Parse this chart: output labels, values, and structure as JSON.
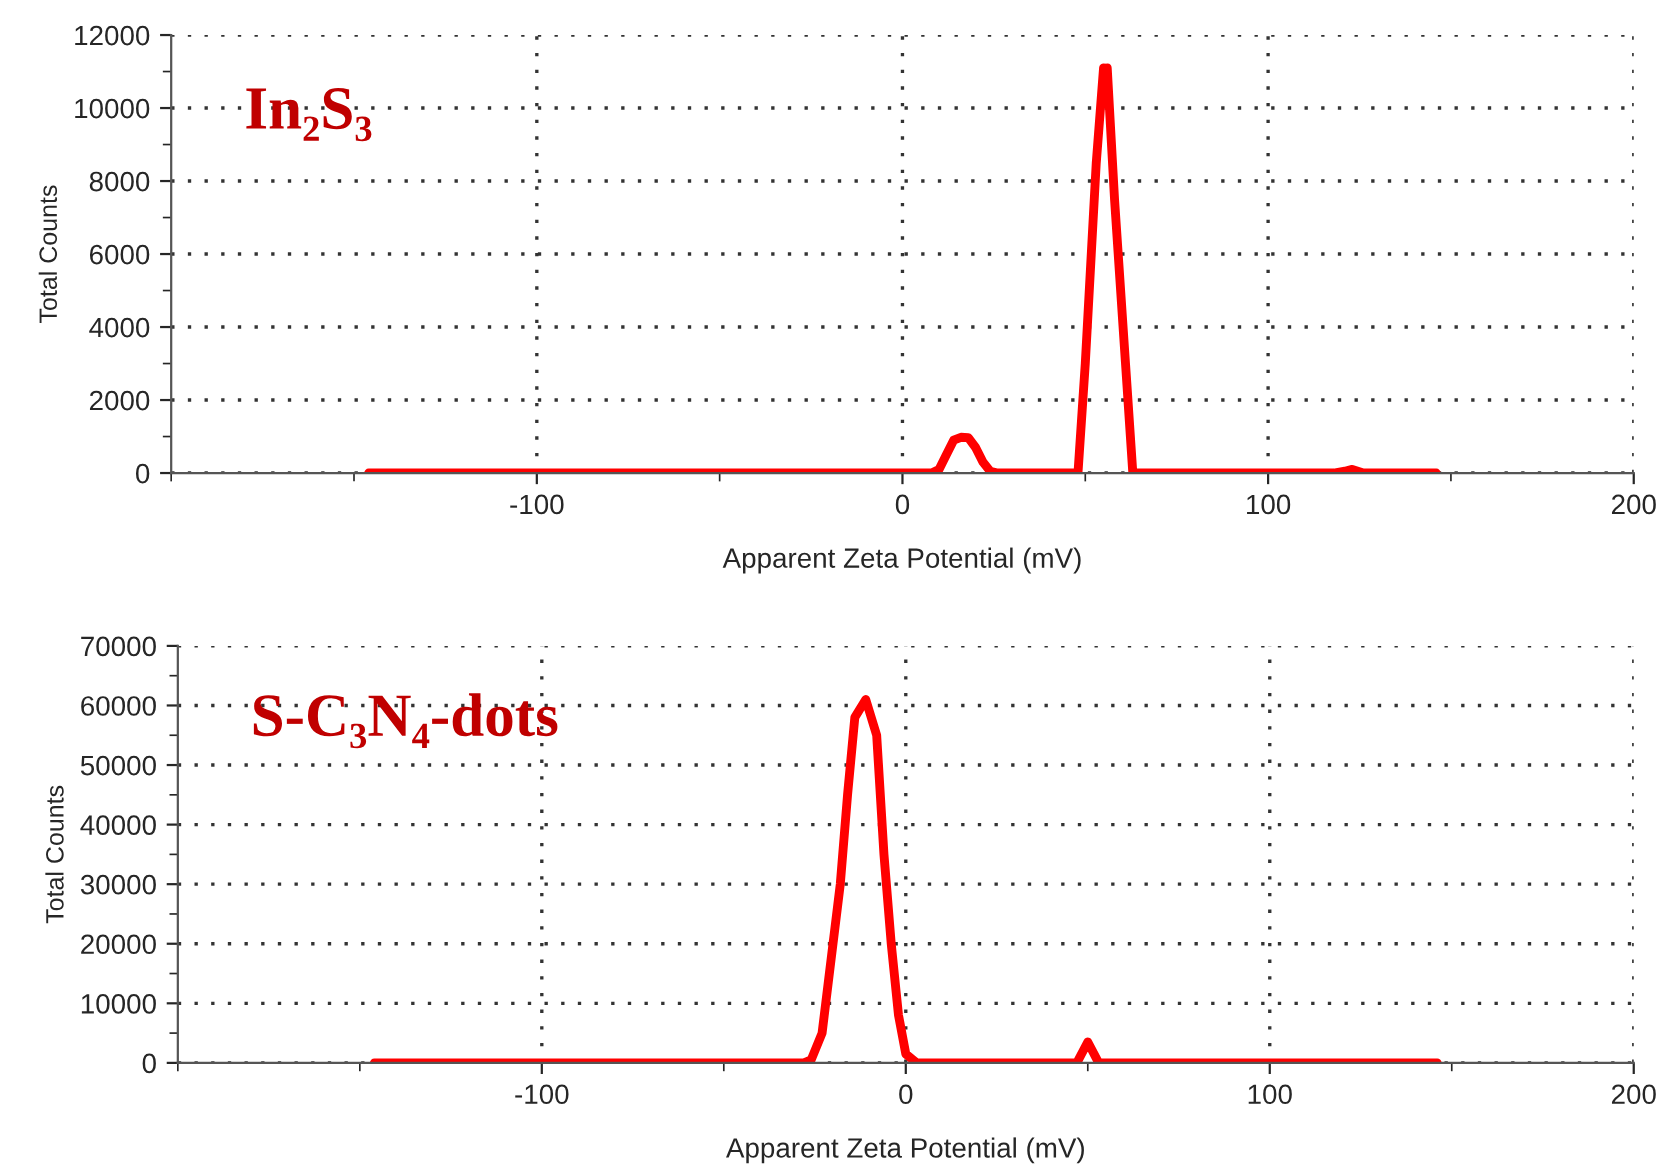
{
  "chart_data": [
    {
      "type": "line",
      "xlabel": "Apparent Zeta Potential (mV)",
      "ylabel": "Total Counts",
      "annotations": [
        "In₂S₃"
      ],
      "series": [
        {
          "color": "#ff0000",
          "x": [
            -146,
            0,
            8,
            10,
            12,
            14,
            16,
            18,
            20,
            22,
            24,
            26,
            48,
            50,
            53,
            55,
            55.5,
            56,
            58,
            61,
            63,
            118,
            121,
            123,
            126,
            146
          ],
          "values": [
            0,
            0,
            0,
            100,
            500,
            900,
            980,
            970,
            700,
            300,
            50,
            0,
            0,
            3000,
            8500,
            11100,
            10300,
            11100,
            7500,
            3000,
            0,
            0,
            50,
            100,
            0,
            0
          ]
        }
      ],
      "xlim": [
        -200,
        200
      ],
      "xticks": [
        -100,
        0,
        100,
        200
      ],
      "ylim": [
        0,
        12000
      ],
      "yticks": [
        0,
        2000,
        4000,
        6000,
        8000,
        10000,
        12000
      ],
      "grid": true,
      "line_style": "solid",
      "marker": "none"
    },
    {
      "type": "line",
      "xlabel": "Apparent Zeta Potential (mV)",
      "ylabel": "Total Counts",
      "annotations": [
        "S-C₃N₄-dots"
      ],
      "series": [
        {
          "color": "#ff0000",
          "x": [
            -146,
            -28,
            -26,
            -23,
            -18,
            -16,
            -14,
            -11,
            -8,
            -6,
            -4,
            -2,
            0,
            3,
            47,
            50,
            53,
            146
          ],
          "values": [
            0,
            0,
            500,
            5000,
            30000,
            45000,
            58000,
            61000,
            55000,
            35000,
            20000,
            8000,
            1500,
            0,
            0,
            3500,
            0,
            0
          ]
        }
      ],
      "xlim": [
        -200,
        200
      ],
      "xticks": [
        -100,
        0,
        100,
        200
      ],
      "ylim": [
        0,
        70000
      ],
      "yticks": [
        0,
        10000,
        20000,
        30000,
        40000,
        50000,
        60000,
        70000
      ],
      "grid": true,
      "line_style": "solid",
      "marker": "none"
    }
  ]
}
